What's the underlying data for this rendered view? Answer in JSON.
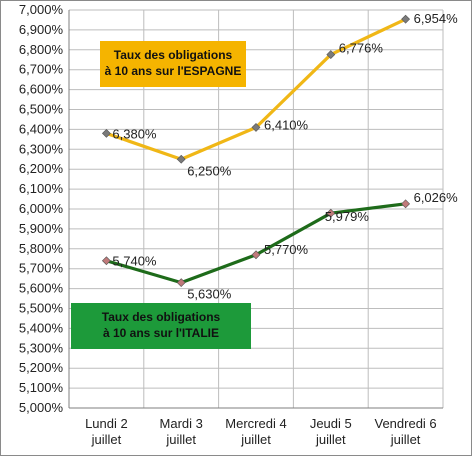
{
  "chart_data": {
    "type": "line",
    "categories": [
      [
        "Lundi 2",
        "juillet"
      ],
      [
        "Mardi 3",
        "juillet"
      ],
      [
        "Mercredi 4",
        "juillet"
      ],
      [
        "Jeudi 5",
        "juillet"
      ],
      [
        "Vendredi 6",
        "juillet"
      ]
    ],
    "ylim": [
      5.0,
      7.0
    ],
    "ystep": 0.1,
    "y_tick_format": "percent-3-comma",
    "grid": true,
    "series": [
      {
        "key": "espagne",
        "values": [
          6.38,
          6.25,
          6.41,
          6.776,
          6.954
        ],
        "labels": [
          "6,380%",
          "6,250%",
          "6,410%",
          "6,776%",
          "6,954%"
        ],
        "color": "#f0b716",
        "marker_color": "#7a7a7a",
        "callout": [
          "Taux des obligations",
          "à 10 ans sur l'ESPAGNE"
        ],
        "callout_bg": "#f5b400"
      },
      {
        "key": "italie",
        "values": [
          5.74,
          5.63,
          5.77,
          5.979,
          6.026
        ],
        "labels": [
          "5,740%",
          "5,630%",
          "5,770%",
          "5,979%",
          "6,026%"
        ],
        "color": "#1e6b1a",
        "marker_color": "#c07a7a",
        "callout": [
          "Taux des obligations",
          "à 10 ans sur l'ITALIE"
        ],
        "callout_bg": "#1d9a3a"
      }
    ]
  }
}
